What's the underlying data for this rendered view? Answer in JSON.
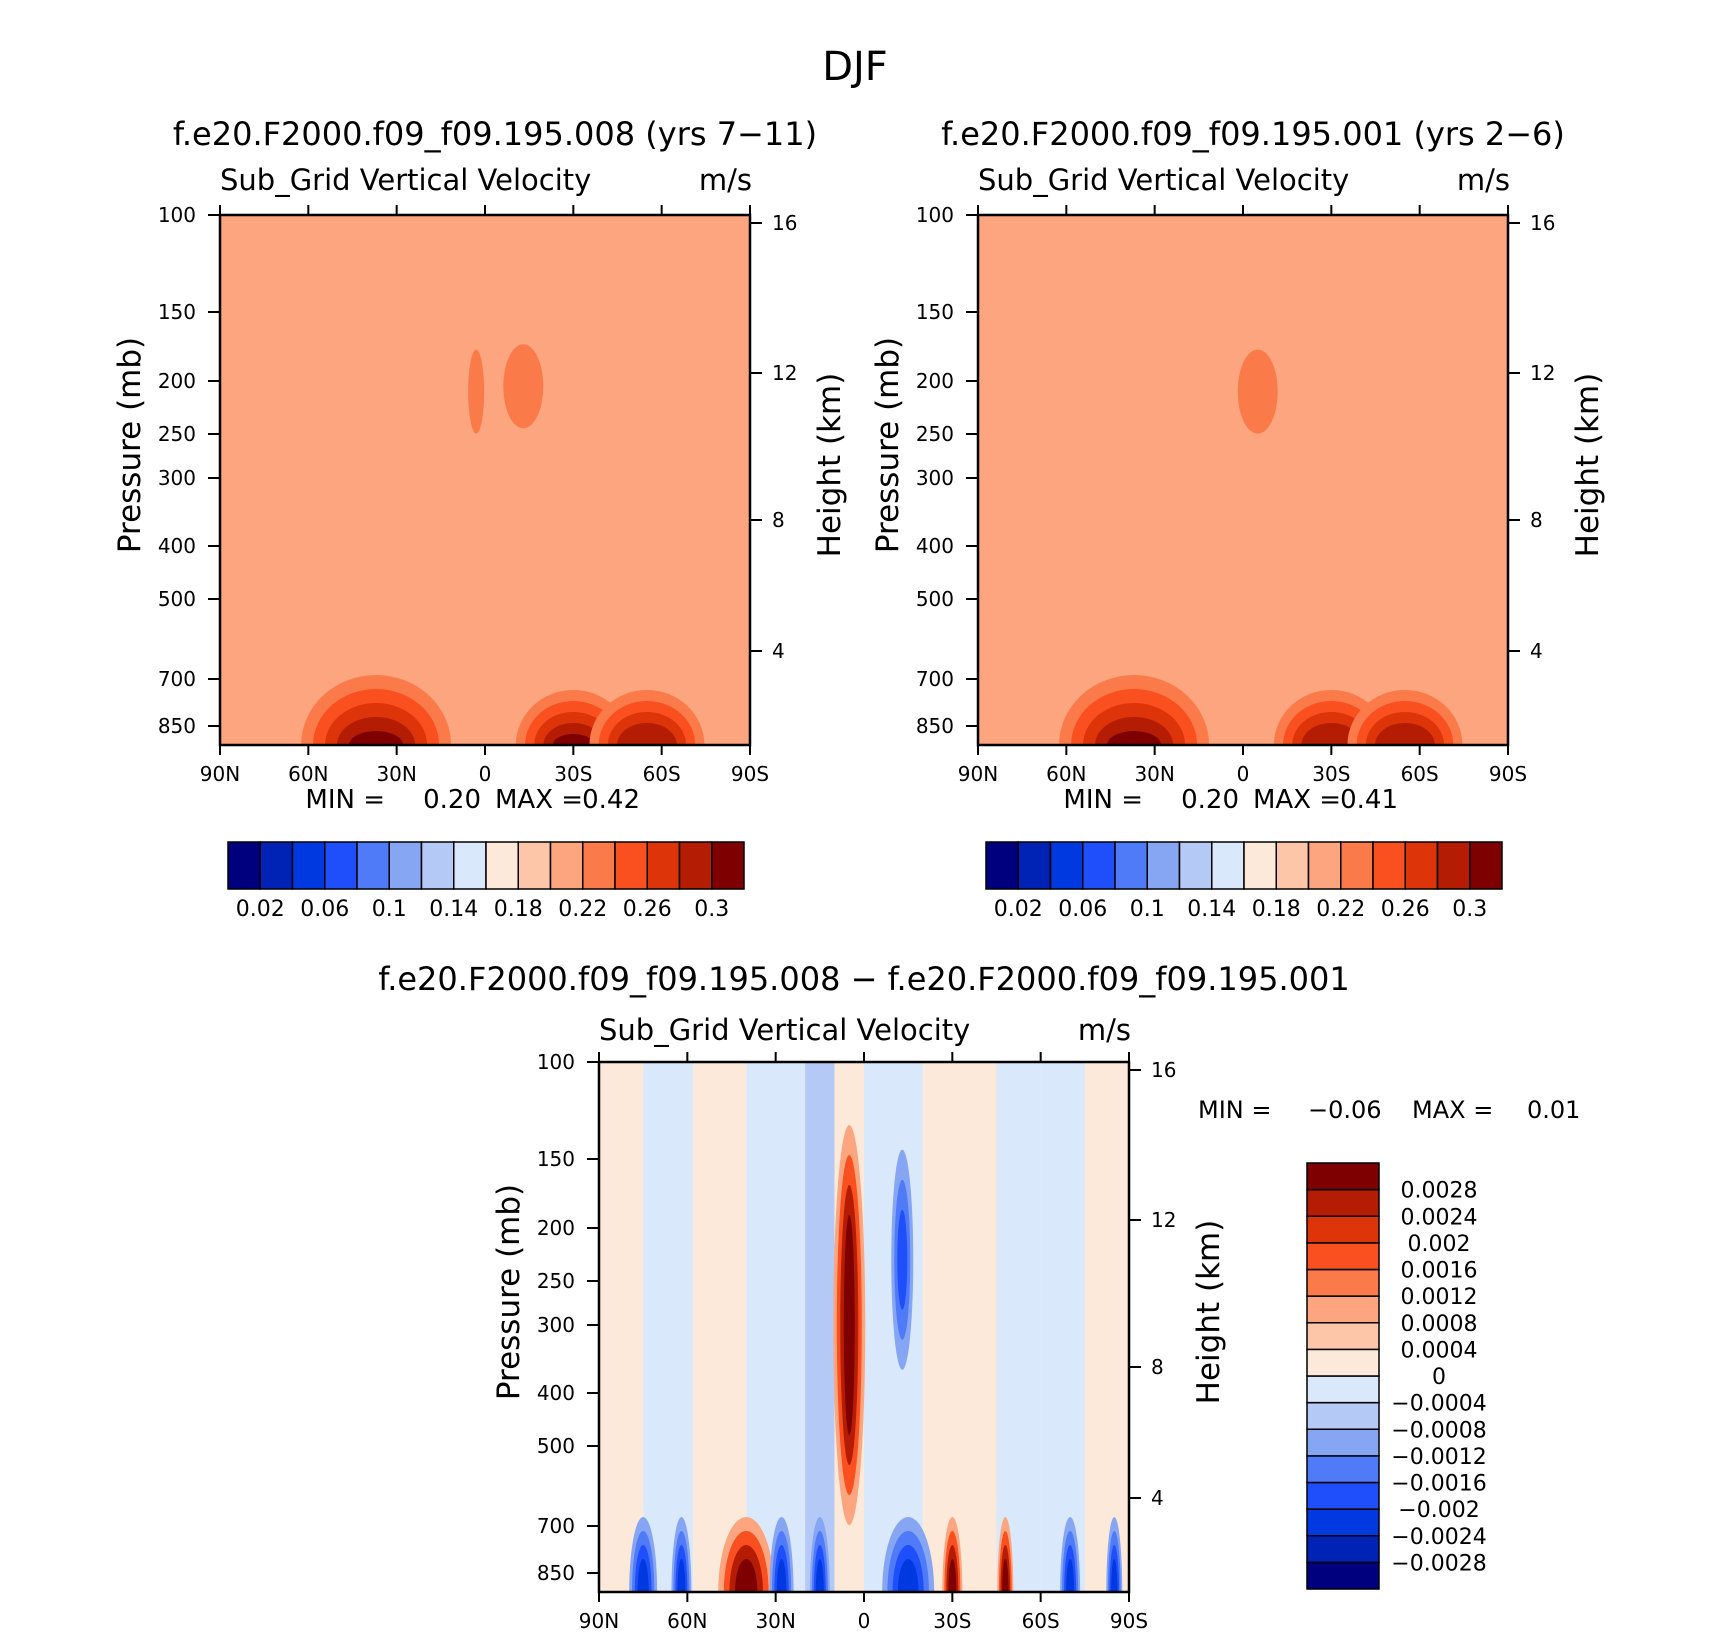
{
  "page": {
    "title": "DJF"
  },
  "chart_data": [
    {
      "type": "heatmap",
      "title": "f.e20.F2000.f09_f09.195.008 (yrs 7−11)",
      "variable": "Sub_Grid Vertical Velocity",
      "units": "m/s",
      "ylabel": "Pressure (mb)",
      "y2label": "Height (km)",
      "x_ticks": [
        "90N",
        "60N",
        "30N",
        "0",
        "30S",
        "60S",
        "90S"
      ],
      "y_ticks": [
        "100",
        "150",
        "200",
        "250",
        "300",
        "400",
        "500",
        "700",
        "850"
      ],
      "y2_ticks": [
        "16",
        "12",
        "8",
        "4"
      ],
      "min_label": "MIN =",
      "min_value": "0.20",
      "max_label": "MAX =",
      "max_value": "0.42",
      "background_value": 0.21,
      "features": [
        {
          "lat": 3,
          "pressure": 210,
          "value": 0.23
        },
        {
          "lat": -13,
          "pressure": 205,
          "value": 0.23
        },
        {
          "lat": 37,
          "pressure": 850,
          "value": 0.42
        },
        {
          "lat": -30,
          "pressure": 850,
          "value": 0.3
        },
        {
          "lat": -55,
          "pressure": 860,
          "value": 0.28
        }
      ],
      "colorbar": {
        "orientation": "horizontal",
        "colors": [
          "#00007f",
          "#0022b5",
          "#0039e0",
          "#1f4ffb",
          "#4f7bf9",
          "#86a5f3",
          "#b5c9f6",
          "#d9e8fb",
          "#fde9d9",
          "#fdc6a8",
          "#fca57f",
          "#fb7a4a",
          "#fa4f1f",
          "#de3409",
          "#b41c04",
          "#7f0000"
        ],
        "labels": [
          "0.02",
          "0.06",
          "0.1",
          "0.14",
          "0.18",
          "0.22",
          "0.26",
          "0.3"
        ]
      }
    },
    {
      "type": "heatmap",
      "title": "f.e20.F2000.f09_f09.195.001 (yrs 2−6)",
      "variable": "Sub_Grid Vertical Velocity",
      "units": "m/s",
      "ylabel": "Pressure (mb)",
      "y2label": "Height (km)",
      "x_ticks": [
        "90N",
        "60N",
        "30N",
        "0",
        "30S",
        "60S",
        "90S"
      ],
      "y_ticks": [
        "100",
        "150",
        "200",
        "250",
        "300",
        "400",
        "500",
        "700",
        "850"
      ],
      "y2_ticks": [
        "16",
        "12",
        "8",
        "4"
      ],
      "min_label": "MIN =",
      "min_value": "0.20",
      "max_label": "MAX =",
      "max_value": "0.41",
      "background_value": 0.21,
      "features": [
        {
          "lat": -5,
          "pressure": 210,
          "value": 0.23
        },
        {
          "lat": 37,
          "pressure": 850,
          "value": 0.41
        },
        {
          "lat": -30,
          "pressure": 850,
          "value": 0.29
        },
        {
          "lat": -55,
          "pressure": 860,
          "value": 0.28
        }
      ],
      "colorbar": {
        "orientation": "horizontal",
        "colors": [
          "#00007f",
          "#0022b5",
          "#0039e0",
          "#1f4ffb",
          "#4f7bf9",
          "#86a5f3",
          "#b5c9f6",
          "#d9e8fb",
          "#fde9d9",
          "#fdc6a8",
          "#fca57f",
          "#fb7a4a",
          "#fa4f1f",
          "#de3409",
          "#b41c04",
          "#7f0000"
        ],
        "labels": [
          "0.02",
          "0.06",
          "0.1",
          "0.14",
          "0.18",
          "0.22",
          "0.26",
          "0.3"
        ]
      }
    },
    {
      "type": "heatmap",
      "title": "f.e20.F2000.f09_f09.195.008 − f.e20.F2000.f09_f09.195.001",
      "variable": "Sub_Grid Vertical Velocity",
      "units": "m/s",
      "ylabel": "Pressure (mb)",
      "y2label": "Height (km)",
      "x_ticks": [
        "90N",
        "60N",
        "30N",
        "0",
        "30S",
        "60S",
        "90S"
      ],
      "y_ticks": [
        "100",
        "150",
        "200",
        "250",
        "300",
        "400",
        "500",
        "700",
        "850"
      ],
      "y2_ticks": [
        "16",
        "12",
        "8",
        "4"
      ],
      "min_label": "MIN =",
      "min_value": "−0.06",
      "max_label": "MAX =",
      "max_value": "0.01",
      "features": [
        {
          "lat": 5,
          "pressure_top": 110,
          "pressure_bottom": 600,
          "value": 0.0028
        },
        {
          "lat": -13,
          "pressure_top": 150,
          "pressure_bottom": 400,
          "value": -0.0024
        },
        {
          "lat": 40,
          "pressure": 820,
          "value": 0.0028
        },
        {
          "lat": -15,
          "pressure": 850,
          "value": -0.0028
        },
        {
          "lat": 75,
          "pressure": 850,
          "value": -0.0028
        }
      ],
      "colorbar": {
        "orientation": "vertical",
        "colors": [
          "#00007f",
          "#0022b5",
          "#0039e0",
          "#1f4ffb",
          "#4f7bf9",
          "#86a5f3",
          "#b5c9f6",
          "#d9e8fb",
          "#fde9d9",
          "#fdc6a8",
          "#fca57f",
          "#fb7a4a",
          "#fa4f1f",
          "#de3409",
          "#b41c04",
          "#7f0000"
        ],
        "labels": [
          "−0.0028",
          "−0.0024",
          "−0.002",
          "−0.0016",
          "−0.0012",
          "−0.0008",
          "−0.0004",
          "0",
          "0.0004",
          "0.0008",
          "0.0012",
          "0.0016",
          "0.002",
          "0.0024",
          "0.0028"
        ]
      }
    }
  ]
}
